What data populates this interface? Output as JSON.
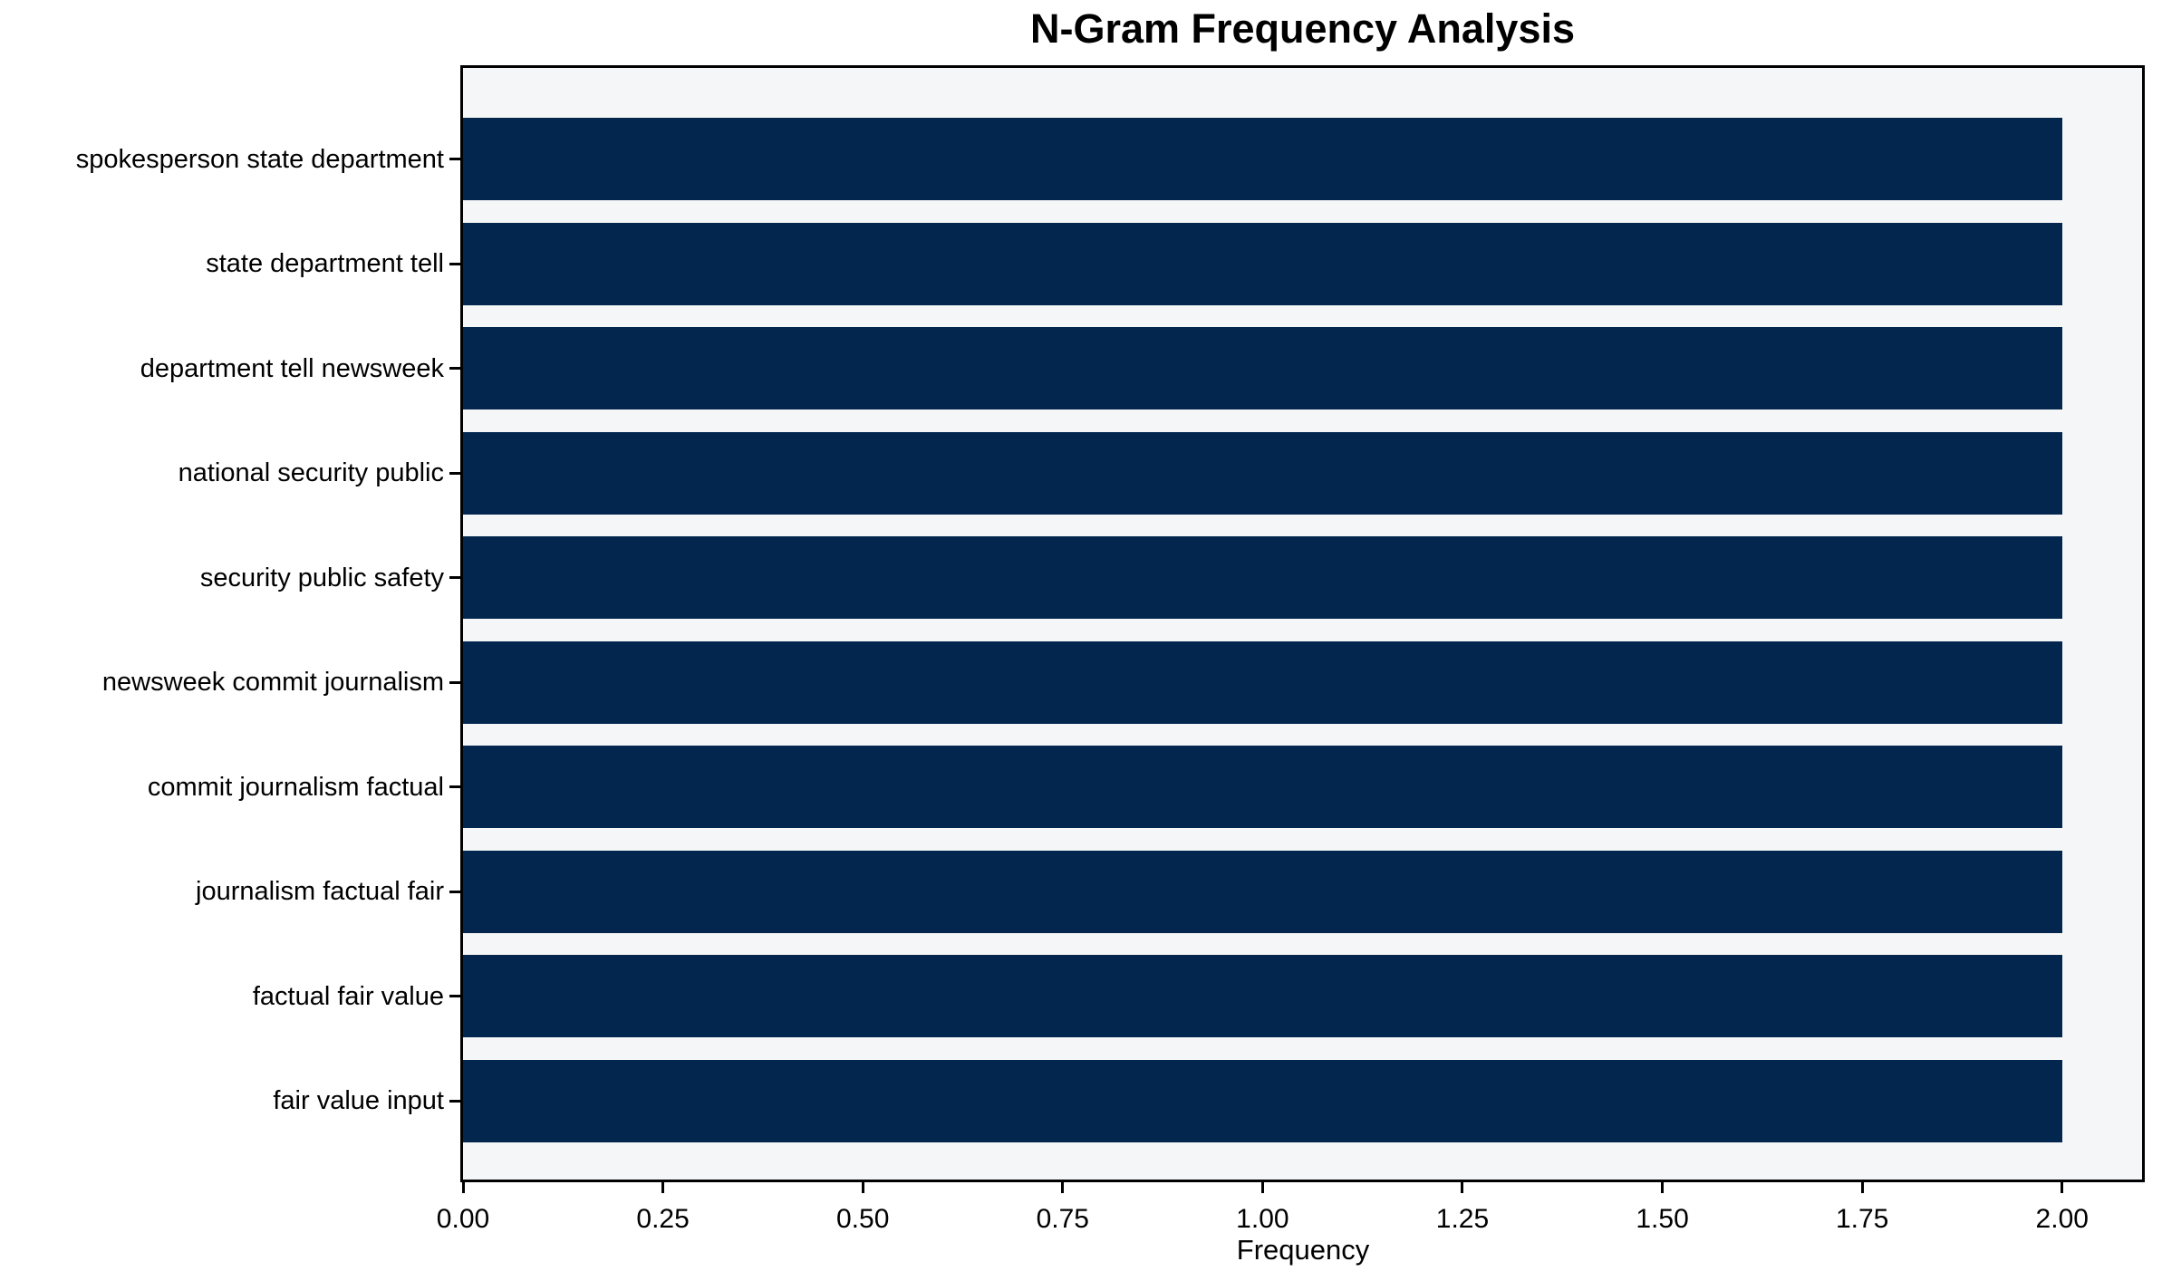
{
  "chart_data": {
    "type": "bar",
    "orientation": "horizontal",
    "title": "N-Gram Frequency Analysis",
    "xlabel": "Frequency",
    "ylabel": "",
    "categories": [
      "spokesperson state department",
      "state department tell",
      "department tell newsweek",
      "national security public",
      "security public safety",
      "newsweek commit journalism",
      "commit journalism factual",
      "journalism factual fair",
      "factual fair value",
      "fair value input"
    ],
    "values": [
      2,
      2,
      2,
      2,
      2,
      2,
      2,
      2,
      2,
      2
    ],
    "xlim": [
      0,
      2.1
    ],
    "xticks": [
      0,
      0.25,
      0.5,
      0.75,
      1.0,
      1.25,
      1.5,
      1.75,
      2.0
    ],
    "xtick_labels": [
      "0.00",
      "0.25",
      "0.50",
      "0.75",
      "1.00",
      "1.25",
      "1.50",
      "1.75",
      "2.00"
    ],
    "grid": false,
    "legend": null,
    "colors": {
      "bar": "#03264f",
      "plot_bg": "#f5f6f7",
      "figure_bg": "#ffffff",
      "spine": "#000000",
      "text": "#000000"
    }
  }
}
